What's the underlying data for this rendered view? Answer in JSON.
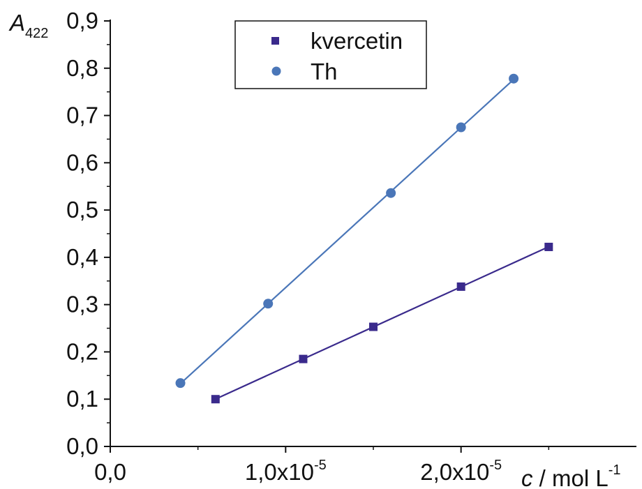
{
  "chart_data": {
    "type": "scatter",
    "title": "",
    "xlabel": {
      "italic": "c",
      "rest": " / mol L",
      "sup": "-1"
    },
    "ylabel": {
      "italic": "A",
      "sub": "422"
    },
    "xlim": [
      0,
      3e-05
    ],
    "ylim": [
      0,
      0.9
    ],
    "x_ticks": [
      {
        "value": 0,
        "mantissa": "0,0",
        "exp": ""
      },
      {
        "value": 1e-05,
        "mantissa": "1,0x10",
        "exp": "-5"
      },
      {
        "value": 2e-05,
        "mantissa": "2,0x10",
        "exp": "-5"
      }
    ],
    "y_ticks": [
      {
        "value": 0.0,
        "label": "0,0"
      },
      {
        "value": 0.1,
        "label": "0,1"
      },
      {
        "value": 0.2,
        "label": "0,2"
      },
      {
        "value": 0.3,
        "label": "0,3"
      },
      {
        "value": 0.4,
        "label": "0,4"
      },
      {
        "value": 0.5,
        "label": "0,5"
      },
      {
        "value": 0.6,
        "label": "0,6"
      },
      {
        "value": 0.7,
        "label": "0,7"
      },
      {
        "value": 0.8,
        "label": "0,8"
      },
      {
        "value": 0.9,
        "label": "0,9"
      }
    ],
    "grid": false,
    "legend_position": "top-center",
    "series": [
      {
        "name": "kvercetin",
        "marker": "square",
        "color": "#3a2a8c",
        "x": [
          6e-06,
          1.1e-05,
          1.5e-05,
          2e-05,
          2.5e-05
        ],
        "y": [
          0.1,
          0.185,
          0.253,
          0.338,
          0.422
        ],
        "fit_line": true
      },
      {
        "name": "Th",
        "marker": "circle",
        "color": "#4a76b8",
        "x": [
          4e-06,
          9e-06,
          1.6e-05,
          2e-05,
          2.3e-05
        ],
        "y": [
          0.134,
          0.302,
          0.536,
          0.675,
          0.778
        ],
        "fit_line": true
      }
    ]
  }
}
